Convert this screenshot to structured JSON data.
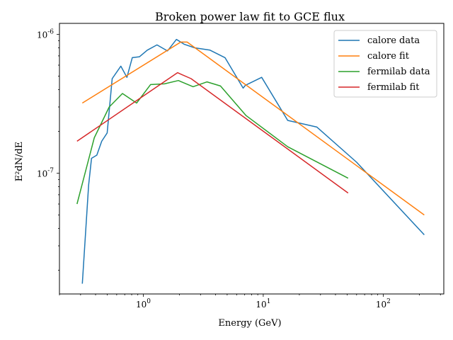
{
  "chart_data": {
    "type": "line",
    "title": "Broken power law fit to GCE flux",
    "xlabel": "Energy (GeV)",
    "ylabel": "E²dN/dE",
    "xscale": "log",
    "yscale": "log",
    "xlim": [
      0.2,
      320
    ],
    "ylim": [
      1.35e-08,
      1.2e-06
    ],
    "grid": false,
    "legend_position": "top-right",
    "x_ticks": [
      {
        "value": 1,
        "base": "10",
        "exp": "0"
      },
      {
        "value": 10,
        "base": "10",
        "exp": "1"
      },
      {
        "value": 100,
        "base": "10",
        "exp": "2"
      }
    ],
    "y_ticks": [
      {
        "value": 1e-07,
        "base": "10",
        "exp": "-7"
      },
      {
        "value": 1e-06,
        "base": "10",
        "exp": "-6"
      }
    ],
    "series": [
      {
        "name": "calore data",
        "color": "#1f77b4",
        "x": [
          0.31,
          0.35,
          0.37,
          0.41,
          0.45,
          0.5,
          0.55,
          0.65,
          0.73,
          0.81,
          0.93,
          1.08,
          1.3,
          1.59,
          1.89,
          2.19,
          2.68,
          3.6,
          4.8,
          6.8,
          7.1,
          9.7,
          16.0,
          28.0,
          60.0,
          220.0
        ],
        "y": [
          1.6e-08,
          8.2e-08,
          1.28e-07,
          1.35e-07,
          1.7e-07,
          1.95e-07,
          4.8e-07,
          5.9e-07,
          4.9e-07,
          6.8e-07,
          6.9e-07,
          7.7e-07,
          8.4e-07,
          7.6e-07,
          9.2e-07,
          8.5e-07,
          8e-07,
          7.7e-07,
          6.8e-07,
          4.1e-07,
          4.3e-07,
          4.9e-07,
          2.4e-07,
          2.15e-07,
          1.2e-07,
          3.6e-08
        ]
      },
      {
        "name": "calore fit",
        "color": "#ff7f0e",
        "x": [
          0.31,
          2.05,
          2.32,
          220.0
        ],
        "y": [
          3.2e-07,
          8.8e-07,
          8.8e-07,
          5e-08
        ]
      },
      {
        "name": "fermilab data",
        "color": "#2ca02c",
        "x": [
          0.28,
          0.39,
          0.52,
          0.67,
          0.88,
          1.15,
          1.5,
          1.96,
          2.6,
          3.4,
          4.4,
          7.2,
          16.0,
          51.0
        ],
        "y": [
          6e-08,
          1.8e-07,
          3e-07,
          3.75e-07,
          3.2e-07,
          4.35e-07,
          4.4e-07,
          4.65e-07,
          4.2e-07,
          4.55e-07,
          4.25e-07,
          2.6e-07,
          1.55e-07,
          9.2e-08
        ]
      },
      {
        "name": "fermilab fit",
        "color": "#d62728",
        "x": [
          0.28,
          1.93,
          2.5,
          51.0
        ],
        "y": [
          1.7e-07,
          5.3e-07,
          4.8e-07,
          7.2e-08
        ]
      }
    ]
  }
}
